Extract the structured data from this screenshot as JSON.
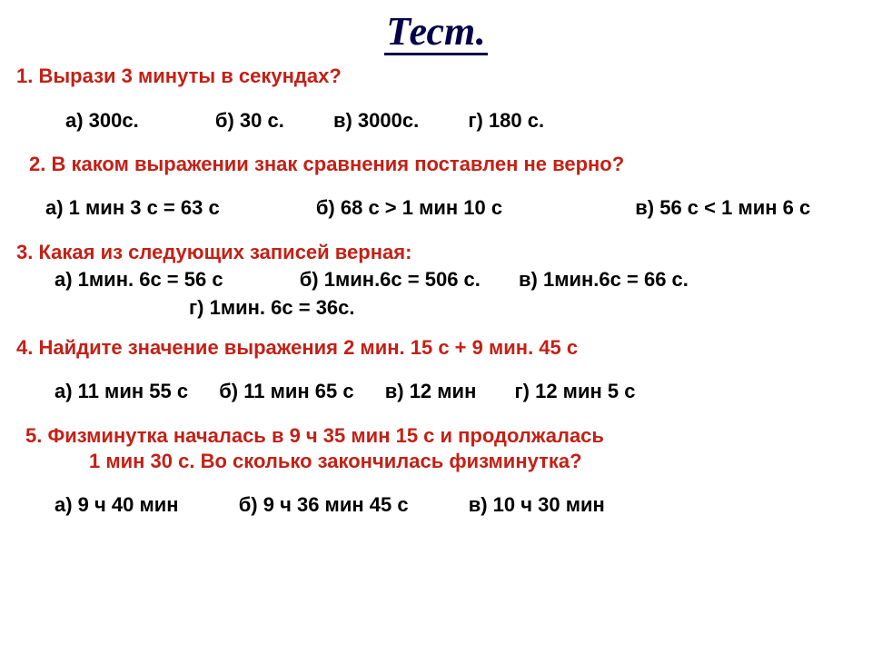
{
  "title": "Тест.",
  "colors": {
    "title_color": "#050049",
    "question_color": "#c42015",
    "option_color": "#000000",
    "background": "#ffffff"
  },
  "typography": {
    "title_font": "Times New Roman, italic bold",
    "title_size_pt": 33,
    "body_font": "Arial, bold",
    "body_size_pt": 16
  },
  "q1": {
    "text": "1. Вырази 3 минуты в секундах?",
    "a": "а) 300с.",
    "b": "б) 30 с.",
    "c": "в) 3000с.",
    "d": "г) 180 с."
  },
  "q2": {
    "text": "2. В каком выражении знак сравнения поставлен не верно?",
    "a": "а) 1 мин 3 с = 63 с",
    "b": "б) 68 с > 1 мин 10 с",
    "c": "в)   56 с < 1 мин 6 с"
  },
  "q3": {
    "text": "3. Какая из следующих записей верная:",
    "a": "а) 1мин. 6с = 56 с",
    "b": "б) 1мин.6с = 506 с.",
    "c": "в) 1мин.6с = 66 с.",
    "d": "г) 1мин. 6с = 36с."
  },
  "q4": {
    "text": "4. Найдите значение выражения 2 мин. 15 с + 9 мин. 45 с",
    "a": "а) 11 мин 55 с",
    "b": "б) 11 мин 65 с",
    "c": "в) 12 мин",
    "d": "г) 12 мин 5 с"
  },
  "q5": {
    "line1": "5.   Физминутка началась в 9 ч 35 мин 15 с и продолжалась",
    "line2": "1 мин 30 с.   Во сколько закончилась физминутка?",
    "a": "а) 9 ч 40 мин",
    "b": "б) 9 ч 36 мин 45 с",
    "c": "в) 10 ч 30 мин"
  }
}
